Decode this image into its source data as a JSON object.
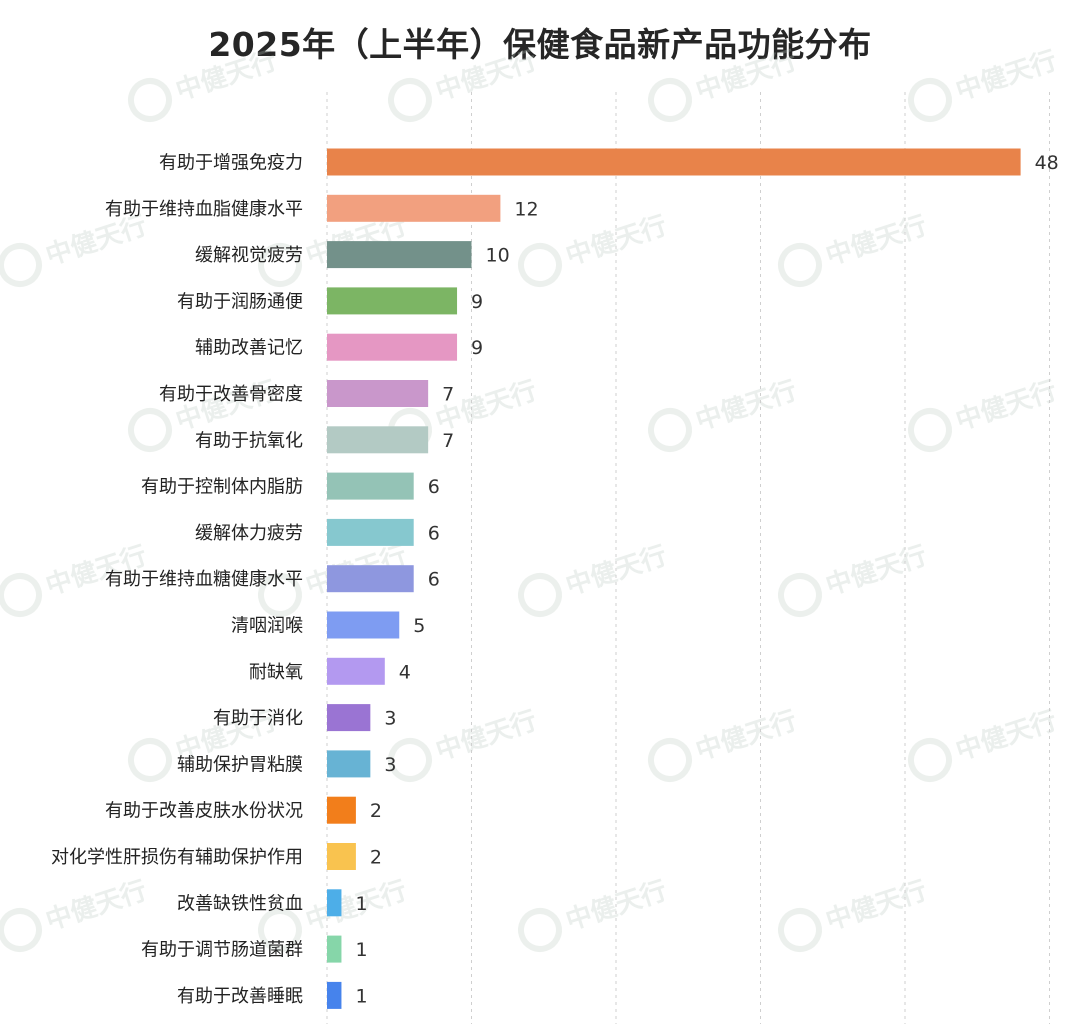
{
  "chart_data": {
    "type": "bar",
    "orientation": "horizontal",
    "title": "2025年（上半年）保健食品新产品功能分布",
    "xlabel": "",
    "ylabel": "",
    "xlim": [
      0,
      50
    ],
    "grid": true,
    "legend": "none",
    "watermark_text": "中健天行",
    "categories": [
      "有助于增强免疫力",
      "有助于维持血脂健康水平",
      "缓解视觉疲劳",
      "有助于润肠通便",
      "辅助改善记忆",
      "有助于改善骨密度",
      "有助于抗氧化",
      "有助于控制体内脂肪",
      "缓解体力疲劳",
      "有助于维持血糖健康水平",
      "清咽润喉",
      "耐缺氧",
      "有助于消化",
      "辅助保护胃粘膜",
      "有助于改善皮肤水份状况",
      "对化学性肝损伤有辅助保护作用",
      "改善缺铁性贫血",
      "有助于调节肠道菌群",
      "有助于改善睡眠"
    ],
    "values": [
      48,
      12,
      10,
      9,
      9,
      7,
      7,
      6,
      6,
      6,
      5,
      4,
      3,
      3,
      2,
      2,
      1,
      1,
      1
    ],
    "colors": [
      "#E8834A",
      "#F2A07F",
      "#73918A",
      "#7CB564",
      "#E597C3",
      "#C997CB",
      "#B3CAC4",
      "#94C3B6",
      "#86C8CF",
      "#8E97DF",
      "#7E9CF2",
      "#B399F0",
      "#9A74D3",
      "#67B3D4",
      "#F27E1B",
      "#F9C34F",
      "#4DAEE8",
      "#86D6A9",
      "#4683EC"
    ]
  }
}
